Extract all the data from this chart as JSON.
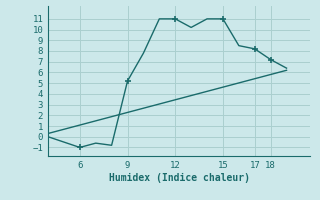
{
  "xlabel": "Humidex (Indice chaleur)",
  "bg_color": "#cce8ea",
  "line_color": "#1a6b6b",
  "grid_color": "#aacfcf",
  "curve1_x": [
    4,
    5,
    6,
    7,
    8,
    9,
    10,
    11,
    12,
    13,
    14,
    15,
    16,
    17,
    18,
    19
  ],
  "curve1_y": [
    0.0,
    -0.5,
    -1.0,
    -0.6,
    -0.8,
    5.2,
    7.8,
    11.0,
    11.0,
    10.2,
    11.0,
    11.0,
    8.5,
    8.2,
    7.2,
    6.4
  ],
  "curve2_x": [
    4,
    19
  ],
  "curve2_y": [
    0.3,
    6.2
  ],
  "markers_x": [
    6,
    9,
    12,
    15,
    17,
    18
  ],
  "markers_y": [
    -1.0,
    5.2,
    11.0,
    11.0,
    8.2,
    7.2
  ],
  "xticks": [
    6,
    9,
    12,
    15,
    17,
    18
  ],
  "yticks": [
    -1,
    0,
    1,
    2,
    3,
    4,
    5,
    6,
    7,
    8,
    9,
    10,
    11
  ],
  "xlim": [
    4.0,
    20.5
  ],
  "ylim": [
    -1.8,
    12.2
  ]
}
